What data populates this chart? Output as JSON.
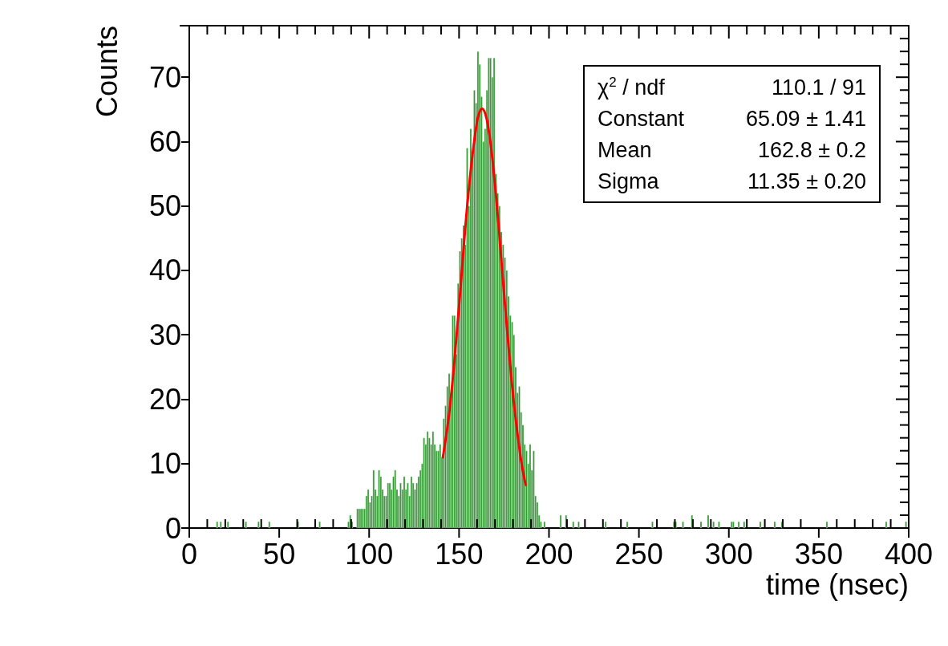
{
  "chart_data": {
    "type": "histogram",
    "xlabel": "time (nsec)",
    "ylabel": "Counts",
    "xlim": [
      0,
      400
    ],
    "ylim": [
      0,
      78
    ],
    "xticks": [
      0,
      50,
      100,
      150,
      200,
      250,
      300,
      350,
      400
    ],
    "yticks": [
      0,
      10,
      20,
      30,
      40,
      50,
      60,
      70
    ],
    "grid": false,
    "series": [
      {
        "color": "#339933",
        "bins": [
          0,
          1,
          2,
          3,
          4,
          5,
          6,
          7,
          8,
          9,
          10,
          11,
          12,
          13,
          14,
          15,
          16,
          17,
          18,
          19,
          20,
          21,
          22,
          23,
          24,
          25,
          26,
          27,
          28,
          29,
          30,
          31,
          32,
          33,
          34,
          35,
          36,
          37,
          38,
          39,
          40,
          41,
          42,
          43,
          44,
          45,
          46,
          47,
          48,
          49,
          50,
          51,
          52,
          53,
          54,
          55,
          56,
          57,
          58,
          59,
          60,
          61,
          62,
          63,
          64,
          65,
          66,
          67,
          68,
          69,
          70,
          71,
          72,
          73,
          74,
          75,
          76,
          77,
          78,
          79,
          80,
          81,
          82,
          83,
          84,
          85,
          86,
          87,
          88,
          89,
          90,
          91,
          92,
          93,
          94,
          95,
          96,
          97,
          98,
          99,
          100,
          101,
          102,
          103,
          104,
          105,
          106,
          107,
          108,
          109,
          110,
          111,
          112,
          113,
          114,
          115,
          116,
          117,
          118,
          119,
          120,
          121,
          122,
          123,
          124,
          125,
          126,
          127,
          128,
          129,
          130,
          131,
          132,
          133,
          134,
          135,
          136,
          137,
          138,
          139,
          140,
          141,
          142,
          143,
          144,
          145,
          146,
          147,
          148,
          149,
          150,
          151,
          152,
          153,
          154,
          155,
          156,
          157,
          158,
          159,
          160,
          161,
          162,
          163,
          164,
          165,
          166,
          167,
          168,
          169,
          170,
          171,
          172,
          173,
          174,
          175,
          176,
          177,
          178,
          179,
          180,
          181,
          182,
          183,
          184,
          185,
          186,
          187,
          188,
          189,
          190,
          191,
          192,
          193,
          194,
          195,
          196,
          197,
          198,
          199,
          200,
          201,
          202,
          203,
          204,
          205,
          206,
          207,
          208,
          209,
          210,
          211,
          212,
          213,
          214,
          215,
          216,
          217,
          218,
          219,
          220,
          221,
          222,
          223,
          224,
          225,
          226,
          227,
          228,
          229,
          230,
          231,
          232,
          233,
          234,
          235,
          236,
          237,
          238,
          239,
          240,
          241,
          242,
          243,
          244,
          245,
          246,
          247,
          248,
          249,
          250,
          251,
          252,
          253,
          254,
          255,
          256,
          257,
          258,
          259,
          260,
          261,
          262,
          263,
          264,
          265,
          266,
          267,
          268,
          269,
          270,
          271,
          272,
          273,
          274,
          275,
          276,
          277,
          278,
          279,
          280,
          281,
          282,
          283,
          284,
          285,
          286,
          287,
          288,
          289,
          290,
          291,
          292,
          293,
          294,
          295,
          296,
          297,
          298,
          299,
          300,
          301,
          302,
          303,
          304,
          305,
          306,
          307,
          308,
          309,
          310,
          311,
          312,
          313,
          314,
          315,
          316,
          317,
          318,
          319,
          320,
          321,
          322,
          323,
          324,
          325,
          326,
          327,
          328,
          329,
          330,
          331,
          332,
          333,
          334,
          335,
          336,
          337,
          338,
          339,
          340,
          341,
          342,
          343,
          344,
          345,
          346,
          347,
          348,
          349,
          350,
          351,
          352,
          353,
          354,
          355,
          356,
          357,
          358,
          359,
          360,
          361,
          362,
          363,
          364,
          365,
          366,
          367,
          368,
          369,
          370,
          371,
          372,
          373,
          374,
          375,
          376,
          377,
          378,
          379,
          380,
          381,
          382,
          383,
          384,
          385,
          386,
          387,
          388,
          389,
          390,
          391,
          392,
          393,
          394,
          395,
          396,
          397,
          398,
          399,
          400
        ],
        "values": [
          0,
          0,
          0,
          0,
          0,
          0,
          0,
          0,
          0,
          0,
          0,
          0,
          0,
          0,
          0,
          1,
          0,
          1,
          0,
          0,
          0,
          1,
          0,
          0,
          0,
          0,
          0,
          0,
          0,
          0,
          0,
          1,
          0,
          0,
          0,
          0,
          0,
          0,
          1,
          0,
          0,
          0,
          0,
          0,
          1,
          0,
          0,
          0,
          0,
          0,
          0,
          0,
          0,
          0,
          0,
          0,
          0,
          0,
          0,
          0,
          1,
          0,
          0,
          0,
          0,
          0,
          0,
          0,
          0,
          0,
          0,
          0,
          1,
          0,
          0,
          0,
          0,
          0,
          0,
          0,
          0,
          0,
          0,
          0,
          0,
          0,
          0,
          0,
          1,
          2,
          1,
          0,
          0,
          3,
          3,
          3,
          3,
          3,
          5,
          6,
          4,
          5,
          9,
          6,
          5,
          9,
          8,
          6,
          5,
          5,
          7,
          7,
          6,
          8,
          9,
          6,
          5,
          7,
          6,
          8,
          6,
          7,
          5,
          8,
          7,
          6,
          7,
          8,
          9,
          10,
          14,
          13,
          15,
          14,
          13,
          15,
          13,
          12,
          12,
          13,
          11,
          17,
          19,
          22,
          24,
          21,
          33,
          33,
          27,
          38,
          43,
          45,
          47,
          44,
          59,
          50,
          62,
          58,
          68,
          66,
          74,
          72,
          67,
          60,
          62,
          68,
          73,
          73,
          70,
          73,
          55,
          52,
          50,
          46,
          44,
          42,
          40,
          36,
          33,
          32,
          30,
          25,
          21,
          22,
          18,
          16,
          13,
          12,
          10,
          13,
          9,
          12,
          5,
          4,
          2,
          1,
          0,
          1,
          0,
          0,
          0,
          0,
          0,
          0,
          0,
          0,
          2,
          0,
          0,
          2,
          0,
          0,
          0,
          1,
          0,
          0,
          1,
          0,
          0,
          0,
          0,
          0,
          0,
          0,
          0,
          0,
          0,
          0,
          0,
          0,
          0,
          1,
          0,
          0,
          0,
          0,
          0,
          0,
          0,
          0,
          0,
          0,
          0,
          1,
          0,
          0,
          0,
          0,
          0,
          0,
          0,
          0,
          0,
          0,
          0,
          0,
          0,
          1,
          0,
          0,
          0,
          0,
          0,
          0,
          0,
          0,
          0,
          0,
          0,
          1,
          1,
          0,
          0,
          0,
          1,
          0,
          0,
          0,
          0,
          2,
          0,
          0,
          0,
          0,
          1,
          0,
          0,
          0,
          2,
          0,
          0,
          1,
          0,
          0,
          1,
          0,
          0,
          0,
          0,
          0,
          0,
          1,
          1,
          0,
          0,
          1,
          0,
          0,
          1,
          0,
          0,
          0,
          0,
          0,
          0,
          0,
          0,
          1,
          0,
          0,
          0,
          0,
          0,
          0,
          0,
          1,
          0,
          0,
          0,
          1,
          0,
          0,
          0,
          0,
          0,
          0,
          0,
          0,
          0,
          0,
          0,
          0,
          0,
          0,
          0,
          0,
          0,
          0,
          0,
          0,
          0,
          0,
          0,
          0,
          1,
          0,
          0,
          0,
          0,
          0,
          0,
          0,
          0,
          0,
          0,
          0,
          0,
          0,
          0,
          0,
          0,
          0,
          0,
          0,
          0,
          0,
          0,
          0,
          0,
          0,
          0,
          0,
          0,
          0,
          0,
          0,
          0,
          1,
          0,
          0,
          0,
          0,
          0,
          0,
          0,
          0,
          0,
          0,
          1,
          0
        ]
      },
      {
        "type": "line",
        "color": "#ff0000",
        "marker": "none",
        "line_style": "solid",
        "x": [
          141,
          145,
          150,
          155,
          160,
          162.8,
          166,
          170,
          175,
          180,
          184,
          187
        ],
        "values": [
          11,
          19,
          34.5,
          51.4,
          63.1,
          65.1,
          62.6,
          53.2,
          36.5,
          20.7,
          11.4,
          6.7
        ]
      }
    ],
    "annotations": [
      "χ$^{2}$ / ndf",
      "110.1 / 91",
      "Constant",
      "65.09 ± 1.41",
      "Mean",
      "162.8 ± 0.2",
      "Sigma",
      "11.35 ± 0.20"
    ]
  }
}
